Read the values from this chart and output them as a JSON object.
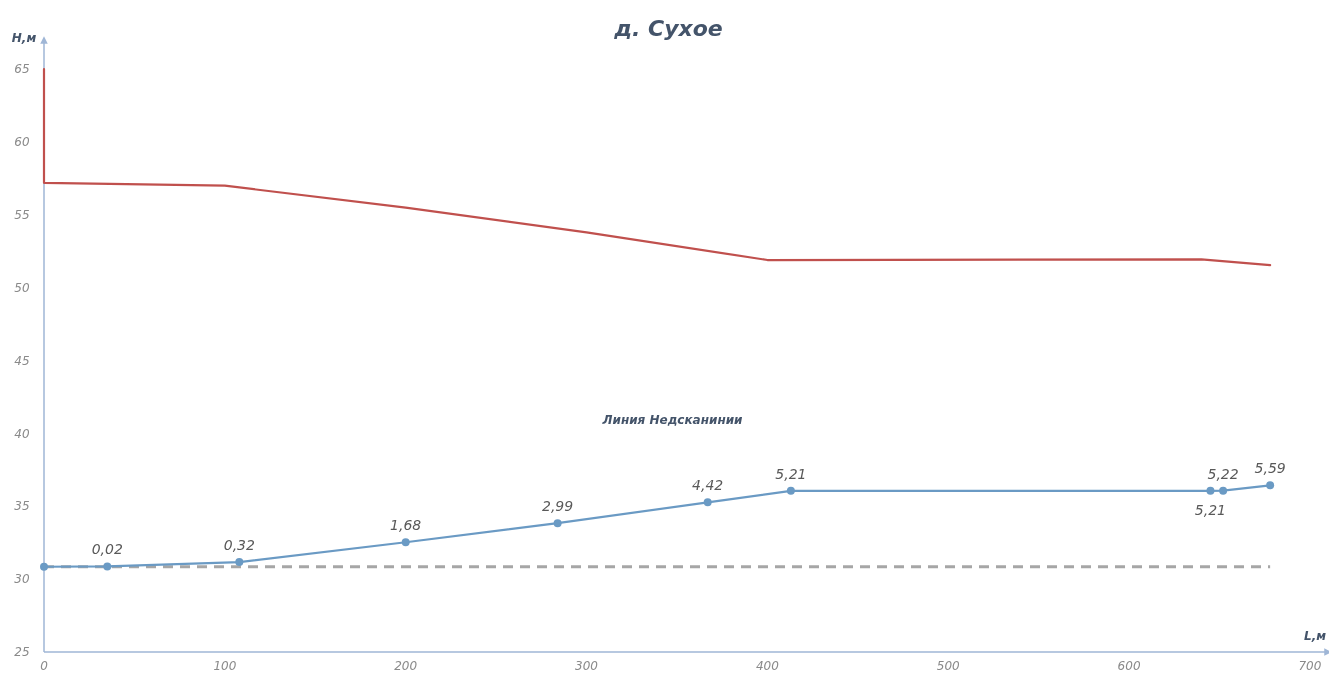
{
  "chart_data": {
    "type": "line",
    "title": "д. Сухое",
    "xlabel": "L,м",
    "ylabel": "H,м",
    "xlim": [
      0,
      710
    ],
    "xticks": [
      0,
      100,
      200,
      300,
      400,
      500,
      600,
      700
    ],
    "ylim": [
      25,
      67
    ],
    "yticks": [
      25,
      30,
      35,
      40,
      45,
      50,
      55,
      60,
      65
    ],
    "grid": false,
    "line_style": "solid",
    "series": [
      {
        "color": "#c0504d",
        "marker": "none",
        "x": [
          0,
          0,
          100,
          200,
          300,
          400,
          640,
          678
        ],
        "values": [
          65,
          57.2,
          57.0,
          55.5,
          53.8,
          51.9,
          51.95,
          51.55
        ]
      },
      {
        "color": "#6a9ac4",
        "marker": "circle",
        "x": [
          0,
          35,
          108,
          200,
          284,
          367,
          413,
          645,
          652,
          678
        ],
        "values": [
          30.85,
          30.87,
          31.17,
          32.53,
          33.84,
          35.27,
          36.06,
          36.06,
          36.07,
          36.44
        ]
      }
    ],
    "ref_lines": [
      {
        "axis": "y",
        "value": 30.85,
        "color": "#a6a6a6",
        "line_style": "dashed"
      }
    ],
    "annotations": [
      "Линия Недсканинии",
      {
        "text": "0,02",
        "x": 35,
        "y": 30.87
      },
      {
        "text": "0,32",
        "x": 108,
        "y": 31.17
      },
      {
        "text": "1,68",
        "x": 200,
        "y": 32.53
      },
      {
        "text": "2,99",
        "x": 284,
        "y": 33.84
      },
      {
        "text": "4,42",
        "x": 367,
        "y": 35.27
      },
      {
        "text": "5,21",
        "x": 413,
        "y": 36.06
      },
      {
        "text": "5,21",
        "x": 645,
        "y": 36.06
      },
      {
        "text": "5,22",
        "x": 652,
        "y": 36.07
      },
      {
        "text": "5,59",
        "x": 678,
        "y": 36.44
      }
    ]
  }
}
